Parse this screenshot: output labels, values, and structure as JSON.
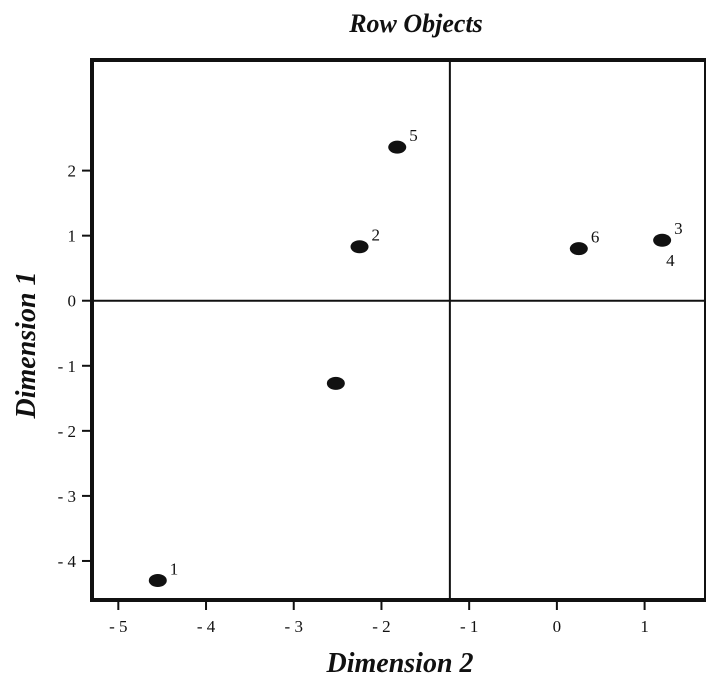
{
  "chart_data": {
    "type": "scatter",
    "title": "Row Objects",
    "xlabel": "Dimension 2",
    "ylabel": "Dimension 1",
    "xlim": [
      -5.3,
      1.7
    ],
    "ylim": [
      -4.6,
      3.7
    ],
    "x_ticks": [
      {
        "value": -5,
        "label": "- 5"
      },
      {
        "value": -4,
        "label": "- 4"
      },
      {
        "value": -3,
        "label": "- 3"
      },
      {
        "value": -2,
        "label": "- 2"
      },
      {
        "value": -1,
        "label": "- 1"
      },
      {
        "value": 0,
        "label": "0"
      },
      {
        "value": 1,
        "label": "1"
      }
    ],
    "y_ticks": [
      {
        "value": 2,
        "label": "2"
      },
      {
        "value": 1,
        "label": "1"
      },
      {
        "value": 0,
        "label": "0"
      },
      {
        "value": -1,
        "label": "- 1"
      },
      {
        "value": -2,
        "label": "- 2"
      },
      {
        "value": -3,
        "label": "- 3"
      },
      {
        "value": -4,
        "label": "- 4"
      }
    ],
    "reference_lines": {
      "x": -1.22,
      "y": 0
    },
    "points": [
      {
        "x": -4.55,
        "y": -4.3,
        "label": "1",
        "label_pos": "upper-right"
      },
      {
        "x": -2.25,
        "y": 0.83,
        "label": "2",
        "label_pos": "upper-right"
      },
      {
        "x": 1.2,
        "y": 0.93,
        "label": "3",
        "label_pos": "upper-right"
      },
      {
        "x": 1.2,
        "y": 0.93,
        "label": "4",
        "label_pos": "lower-right"
      },
      {
        "x": -1.82,
        "y": 2.36,
        "label": "5",
        "label_pos": "upper-right"
      },
      {
        "x": 0.25,
        "y": 0.8,
        "label": "6",
        "label_pos": "upper-right"
      },
      {
        "x": -2.52,
        "y": -1.27,
        "label": "",
        "label_pos": "none"
      }
    ],
    "grid": false,
    "marker_color": "#111111",
    "axis_color": "#111111"
  }
}
